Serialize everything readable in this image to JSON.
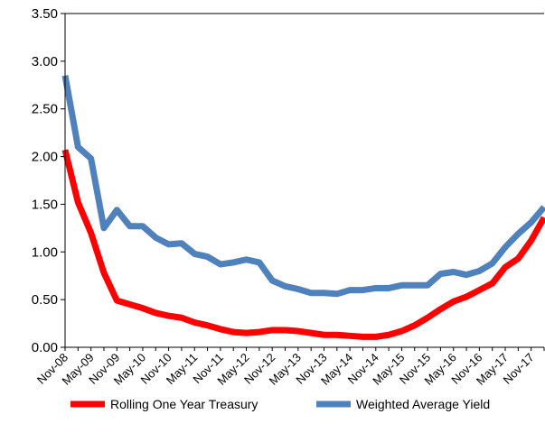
{
  "chart_data": {
    "type": "line",
    "categories": [
      "Nov-08",
      null,
      "May-09",
      null,
      "Nov-09",
      null,
      "May-10",
      null,
      "Nov-10",
      null,
      "May-11",
      null,
      "Nov-11",
      null,
      "May-12",
      null,
      "Nov-12",
      null,
      "May-13",
      null,
      "Nov-13",
      null,
      "May-14",
      null,
      "Nov-14",
      null,
      "May-15",
      null,
      "Nov-15",
      null,
      "May-16",
      null,
      "Nov-16",
      null,
      "May-17",
      null,
      "Nov-17",
      null
    ],
    "series": [
      {
        "name": "Rolling One Year Treasury",
        "color": "#ff0000",
        "values": [
          2.07,
          1.52,
          1.2,
          0.78,
          0.49,
          0.45,
          0.41,
          0.36,
          0.33,
          0.31,
          0.26,
          0.23,
          0.19,
          0.16,
          0.15,
          0.16,
          0.18,
          0.18,
          0.17,
          0.15,
          0.13,
          0.13,
          0.12,
          0.11,
          0.11,
          0.13,
          0.17,
          0.23,
          0.31,
          0.4,
          0.48,
          0.53,
          0.6,
          0.67,
          0.84,
          0.93,
          1.12,
          1.36
        ]
      },
      {
        "name": "Weighted Average Yield",
        "color": "#4f81bd",
        "values": [
          2.85,
          2.1,
          1.98,
          1.25,
          1.44,
          1.27,
          1.27,
          1.15,
          1.08,
          1.09,
          0.98,
          0.95,
          0.87,
          0.89,
          0.92,
          0.89,
          0.7,
          0.64,
          0.61,
          0.57,
          0.57,
          0.56,
          0.6,
          0.6,
          0.62,
          0.62,
          0.65,
          0.65,
          0.65,
          0.77,
          0.79,
          0.76,
          0.8,
          0.88,
          1.05,
          1.19,
          1.31,
          1.47
        ]
      }
    ],
    "ylim": [
      0,
      3.5
    ],
    "yticks": [
      {
        "value": 0,
        "label": "0.00"
      },
      {
        "value": 0.5,
        "label": "0.50"
      },
      {
        "value": 1,
        "label": "1.00"
      },
      {
        "value": 1.5,
        "label": "1.50"
      },
      {
        "value": 2,
        "label": "2.00"
      },
      {
        "value": 2.5,
        "label": "2.50"
      },
      {
        "value": 3,
        "label": "3.00"
      },
      {
        "value": 3.5,
        "label": "3.50"
      }
    ],
    "grid": false,
    "legend": "bottom"
  }
}
